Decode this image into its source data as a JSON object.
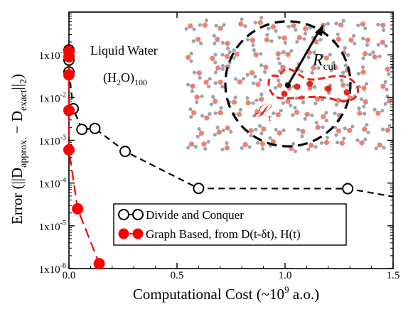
{
  "chart_data": {
    "type": "line",
    "xlabel_main": "Computational Cost (~10",
    "xlabel_sup": "9",
    "xlabel_tail": " a.o.)",
    "ylabel_pre": "Error (||D",
    "ylabel_sub1": "approx.",
    "ylabel_mid": " − D",
    "ylabel_sub2": "exact",
    "ylabel_post": "||",
    "ylabel_sub3": "2",
    "ylabel_close": ")",
    "xlim": [
      0,
      1.5
    ],
    "ylim_log10": [
      -6,
      0
    ],
    "y_scale": "log",
    "xticks": [
      {
        "value": 0.0,
        "label": "0.0"
      },
      {
        "value": 0.5,
        "label": "0.5"
      },
      {
        "value": 1.0,
        "label": "1.0"
      },
      {
        "value": 1.5,
        "label": "1.5"
      }
    ],
    "yticks": [
      {
        "exp": -6,
        "base": "1x10",
        "sup": "-6"
      },
      {
        "exp": -5,
        "base": "1x10",
        "sup": "-5"
      },
      {
        "exp": -4,
        "base": "1x10",
        "sup": "-4"
      },
      {
        "exp": -3,
        "base": "1x10",
        "sup": "-3"
      },
      {
        "exp": -2,
        "base": "1x10",
        "sup": "-2"
      },
      {
        "exp": -1,
        "base": "1x10",
        "sup": "-1"
      }
    ],
    "series": [
      {
        "name": "Divide and Conquer",
        "color": "#000000",
        "fill": "#ffffff",
        "marker": "open-circle",
        "line": "dashed",
        "x": [
          0.0,
          0.0,
          0.0,
          0.02,
          0.06,
          0.12,
          0.26,
          0.6,
          1.29,
          1.5
        ],
        "y": [
          0.13,
          0.075,
          0.04,
          0.0055,
          0.0018,
          0.0019,
          0.00055,
          7.5e-05,
          7.4e-05,
          4.8e-05
        ]
      },
      {
        "name": "Graph Based, from D(t-δt), H(t)",
        "color": "#ff0000",
        "fill": "#ff0000",
        "marker": "filled-circle",
        "line": "dashed",
        "x": [
          0.0,
          0.0,
          0.0,
          0.0,
          0.0,
          0.04,
          0.14
        ],
        "y": [
          0.12,
          0.09,
          0.034,
          0.005,
          0.0006,
          2.5e-05,
          1.3e-06
        ]
      }
    ],
    "legend_position": "bottom-center",
    "annotations": {
      "title_line1": "Liquid Water",
      "formula_open": "(H",
      "formula_sub": "2",
      "formula_close": "O)",
      "formula_count": "100",
      "r_label": "R",
      "r_sub": "cut",
      "s_label": "𝒮",
      "s_sub": "τ"
    }
  },
  "colors": {
    "oxygen": "#f08070",
    "hydrogen": "#9aa4b0",
    "red_region": "#e8241a"
  }
}
